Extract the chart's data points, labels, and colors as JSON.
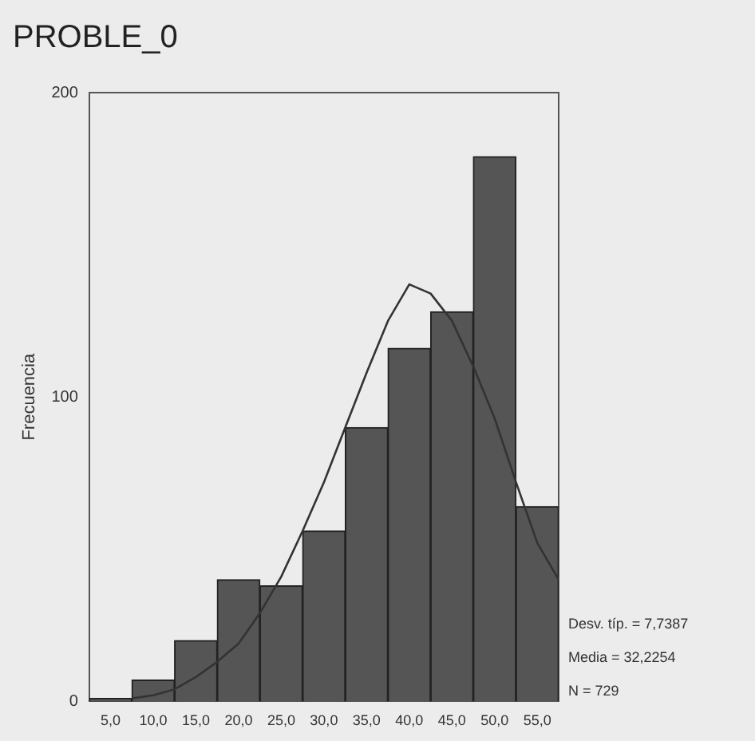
{
  "chart_data": {
    "type": "histogram",
    "title": "PROBLE_0",
    "ylabel": "Frecuencia",
    "bins": [
      2.5,
      7.5,
      12.5,
      17.5,
      22.5,
      27.5,
      32.5,
      37.5,
      42.5,
      47.5,
      52.5,
      57.5
    ],
    "values": [
      1,
      7,
      20,
      40,
      38,
      56,
      90,
      116,
      128,
      179,
      64
    ],
    "color": "#555555",
    "series": [
      {
        "type": "line",
        "color": "#333333",
        "x": [
          7.5,
          10,
          12.5,
          15,
          17.5,
          20,
          22.5,
          25,
          27.5,
          30,
          32.5,
          35,
          37.5,
          40,
          42.5,
          45,
          47.5,
          50,
          52.5,
          55,
          57.5
        ],
        "values": [
          1,
          2,
          4,
          8,
          13,
          19,
          29,
          41,
          56,
          72,
          90,
          108,
          125,
          137,
          134,
          125,
          110,
          93,
          72,
          52,
          40
        ]
      }
    ],
    "xlim": [
      2.5,
      57.5
    ],
    "xticks": [
      {
        "value": 5,
        "label": "5,0"
      },
      {
        "value": 10,
        "label": "10,0"
      },
      {
        "value": 15,
        "label": "15,0"
      },
      {
        "value": 20,
        "label": "20,0"
      },
      {
        "value": 25,
        "label": "25,0"
      },
      {
        "value": 30,
        "label": "30,0"
      },
      {
        "value": 35,
        "label": "35,0"
      },
      {
        "value": 40,
        "label": "40,0"
      },
      {
        "value": 45,
        "label": "45,0"
      },
      {
        "value": 50,
        "label": "50,0"
      },
      {
        "value": 55,
        "label": "55,0"
      }
    ],
    "ylim": [
      0,
      200
    ],
    "yticks": [
      0,
      100,
      200
    ],
    "grid": false,
    "legend": false,
    "annotations": [
      "Desv. típ. = 7,7387",
      "Media = 32,2254",
      "N = 729"
    ]
  }
}
